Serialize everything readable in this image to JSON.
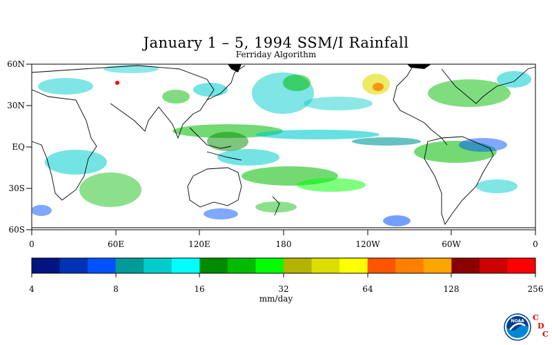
{
  "title": "January 1 – 5, 1994 SSM/I Rainfall",
  "subtitle": "Ferriday Algorithm",
  "lat_labels": [
    "60N",
    "30N",
    "EQ",
    "30S",
    "60S"
  ],
  "lon_labels": [
    "0",
    "60E",
    "120E",
    "180",
    "120W",
    "60W",
    "0"
  ],
  "legend": {
    "ticks": [
      "4",
      "8",
      "16",
      "32",
      "64",
      "128",
      "256"
    ],
    "units": "mm/day",
    "colors": [
      "#00157f",
      "#0033b4",
      "#0052ff",
      "#009a99",
      "#00cccc",
      "#00ffff",
      "#008b00",
      "#00bb00",
      "#00ff00",
      "#b4b400",
      "#dddd00",
      "#ffff00",
      "#ff5500",
      "#ff7f00",
      "#ffa500",
      "#8b0000",
      "#cc0000",
      "#ff0000"
    ]
  },
  "logo": {
    "noaa": "NOAA",
    "cdc": [
      "C",
      "D",
      "C"
    ]
  }
}
